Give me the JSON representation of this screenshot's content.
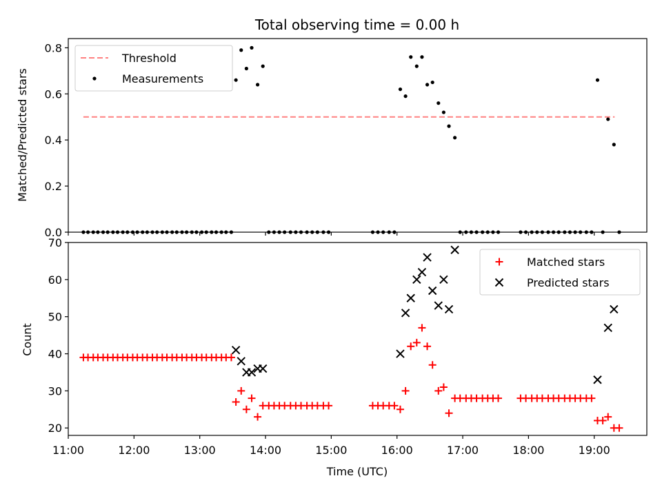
{
  "chart_data": [
    {
      "type": "scatter",
      "title": "Total observing time = 0.00 h",
      "xlabel": "",
      "ylabel": "Matched/Predicted stars",
      "xlim": [
        11.0,
        19.8
      ],
      "ylim": [
        0.0,
        0.84
      ],
      "yticks": [
        0.0,
        0.2,
        0.4,
        0.6,
        0.8
      ],
      "ytick_labels": [
        "0.0",
        "0.2",
        "0.4",
        "0.6",
        "0.8"
      ],
      "legend_position": "upper left",
      "series": [
        {
          "name": "Threshold",
          "style": "dashed-line",
          "color": "#ff8080",
          "x": [
            11.23,
            19.31
          ],
          "y": [
            0.5,
            0.5
          ]
        },
        {
          "name": "Measurements",
          "style": "dot",
          "color": "#000000",
          "x": [
            11.23,
            11.3,
            11.38,
            11.45,
            11.53,
            11.6,
            11.68,
            11.75,
            11.83,
            11.9,
            11.98,
            12.05,
            12.13,
            12.2,
            12.28,
            12.35,
            12.43,
            12.5,
            12.58,
            12.65,
            12.73,
            12.8,
            12.88,
            12.95,
            13.03,
            13.1,
            13.18,
            13.25,
            13.33,
            13.4,
            13.48,
            13.55,
            13.63,
            13.71,
            13.79,
            13.88,
            13.96,
            14.05,
            14.13,
            14.21,
            14.29,
            14.38,
            14.46,
            14.54,
            14.63,
            14.71,
            14.79,
            14.88,
            14.96,
            15.63,
            15.71,
            15.79,
            15.88,
            15.96,
            16.05,
            16.13,
            16.21,
            16.3,
            16.38,
            16.46,
            16.54,
            16.63,
            16.71,
            16.79,
            16.88,
            16.96,
            17.05,
            17.13,
            17.21,
            17.3,
            17.38,
            17.46,
            17.54,
            17.88,
            17.96,
            18.05,
            18.13,
            18.21,
            18.3,
            18.38,
            18.46,
            18.55,
            18.63,
            18.71,
            18.79,
            18.88,
            18.96,
            19.05,
            19.13,
            19.21,
            19.3,
            19.38
          ],
          "y": [
            0,
            0,
            0,
            0,
            0,
            0,
            0,
            0,
            0,
            0,
            0,
            0,
            0,
            0,
            0,
            0,
            0,
            0,
            0,
            0,
            0,
            0,
            0,
            0,
            0,
            0,
            0,
            0,
            0,
            0,
            0,
            0.66,
            0.79,
            0.71,
            0.8,
            0.64,
            0.72,
            0,
            0,
            0,
            0,
            0,
            0,
            0,
            0,
            0,
            0,
            0,
            0,
            0,
            0,
            0,
            0,
            0,
            0.62,
            0.59,
            0.76,
            0.72,
            0.76,
            0.64,
            0.65,
            0.56,
            0.52,
            0.46,
            0.41,
            0,
            0,
            0,
            0,
            0,
            0,
            0,
            0,
            0,
            0,
            0,
            0,
            0,
            0,
            0,
            0,
            0,
            0,
            0,
            0,
            0,
            0,
            0.66,
            0,
            0.49,
            0.38,
            0
          ]
        }
      ],
      "grid": false
    },
    {
      "type": "scatter",
      "title": "",
      "xlabel": "Time (UTC)",
      "ylabel": "Count",
      "xlim": [
        11.0,
        19.8
      ],
      "ylim": [
        18,
        70
      ],
      "xticks": [
        11,
        12,
        13,
        14,
        15,
        16,
        17,
        18,
        19
      ],
      "xtick_labels": [
        "11:00",
        "12:00",
        "13:00",
        "14:00",
        "15:00",
        "16:00",
        "17:00",
        "18:00",
        "19:00"
      ],
      "yticks": [
        20,
        30,
        40,
        50,
        60,
        70
      ],
      "ytick_labels": [
        "20",
        "30",
        "40",
        "50",
        "60",
        "70"
      ],
      "legend_position": "upper right",
      "series": [
        {
          "name": "Matched stars",
          "marker": "+",
          "color": "#ff0000",
          "x": [
            11.23,
            11.3,
            11.38,
            11.45,
            11.53,
            11.6,
            11.68,
            11.75,
            11.83,
            11.9,
            11.98,
            12.05,
            12.13,
            12.2,
            12.28,
            12.35,
            12.43,
            12.5,
            12.58,
            12.65,
            12.73,
            12.8,
            12.88,
            12.95,
            13.03,
            13.1,
            13.18,
            13.25,
            13.33,
            13.4,
            13.48,
            13.55,
            13.63,
            13.71,
            13.79,
            13.88,
            13.96,
            14.05,
            14.13,
            14.21,
            14.29,
            14.38,
            14.46,
            14.54,
            14.63,
            14.71,
            14.79,
            14.88,
            14.96,
            15.63,
            15.71,
            15.79,
            15.88,
            15.96,
            16.05,
            16.13,
            16.21,
            16.3,
            16.38,
            16.46,
            16.54,
            16.63,
            16.71,
            16.79,
            16.88,
            16.96,
            17.05,
            17.13,
            17.21,
            17.3,
            17.38,
            17.46,
            17.54,
            17.88,
            17.96,
            18.05,
            18.13,
            18.21,
            18.3,
            18.38,
            18.46,
            18.55,
            18.63,
            18.71,
            18.79,
            18.88,
            18.96,
            19.05,
            19.13,
            19.21,
            19.3,
            19.38
          ],
          "y": [
            39,
            39,
            39,
            39,
            39,
            39,
            39,
            39,
            39,
            39,
            39,
            39,
            39,
            39,
            39,
            39,
            39,
            39,
            39,
            39,
            39,
            39,
            39,
            39,
            39,
            39,
            39,
            39,
            39,
            39,
            39,
            27,
            30,
            25,
            28,
            23,
            26,
            26,
            26,
            26,
            26,
            26,
            26,
            26,
            26,
            26,
            26,
            26,
            26,
            26,
            26,
            26,
            26,
            26,
            25,
            30,
            42,
            43,
            47,
            42,
            37,
            30,
            31,
            24,
            28,
            28,
            28,
            28,
            28,
            28,
            28,
            28,
            28,
            28,
            28,
            28,
            28,
            28,
            28,
            28,
            28,
            28,
            28,
            28,
            28,
            28,
            28,
            22,
            22,
            23,
            20,
            20
          ]
        },
        {
          "name": "Predicted stars",
          "marker": "x",
          "color": "#000000",
          "x": [
            13.55,
            13.63,
            13.71,
            13.79,
            13.88,
            13.96,
            16.05,
            16.13,
            16.21,
            16.3,
            16.38,
            16.46,
            16.54,
            16.63,
            16.71,
            16.79,
            16.88,
            19.05,
            19.21,
            19.3
          ],
          "y": [
            41,
            38,
            35,
            35,
            36,
            36,
            40,
            51,
            55,
            60,
            62,
            66,
            57,
            53,
            60,
            52,
            68,
            33,
            47,
            52
          ]
        }
      ],
      "grid": false
    }
  ]
}
